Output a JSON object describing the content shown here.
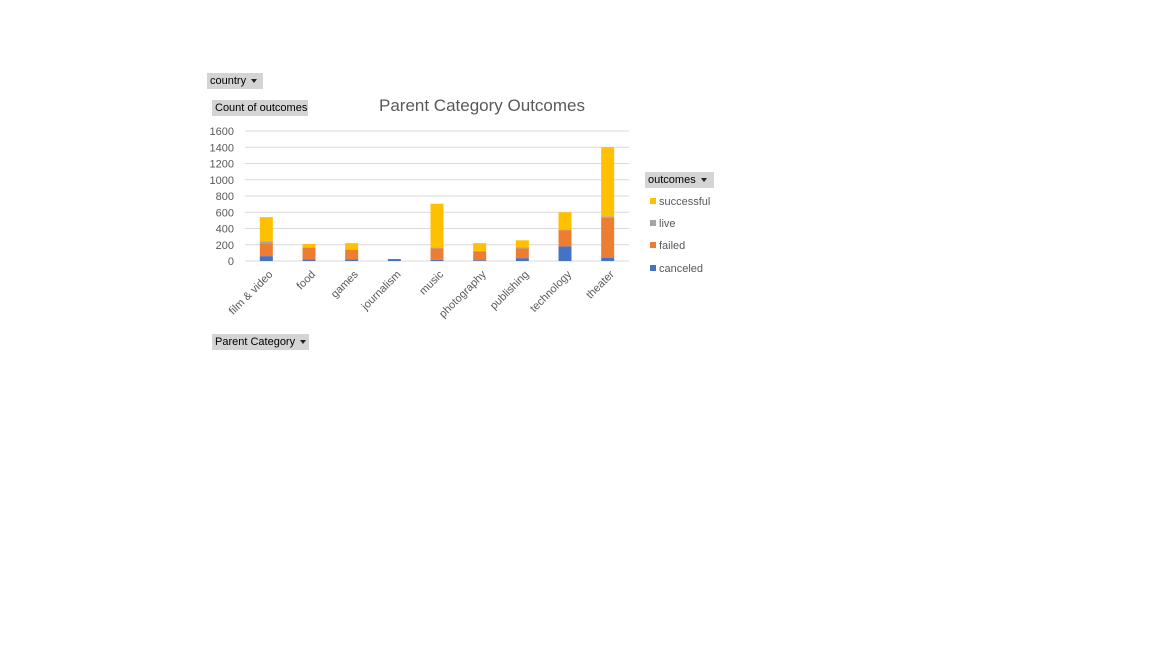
{
  "filters": {
    "country_label": "country",
    "value_label": "Count of outcomes",
    "legend_field_label": "outcomes",
    "axis_field_label": "Parent Category"
  },
  "colors": {
    "successful": "#ffc000",
    "live": "#a5a5a5",
    "failed": "#ed7d31",
    "canceled": "#4472c4",
    "gridline": "#d9d9d9",
    "text": "#595959"
  },
  "chart_data": {
    "type": "bar",
    "stacked": true,
    "title": "Parent Category Outcomes",
    "categories": [
      "film & video",
      "food",
      "games",
      "journalism",
      "music",
      "photography",
      "publishing",
      "technology",
      "theater"
    ],
    "series": [
      {
        "name": "canceled",
        "values": [
          60,
          20,
          20,
          24,
          15,
          10,
          35,
          180,
          37
        ]
      },
      {
        "name": "failed",
        "values": [
          160,
          140,
          120,
          0,
          140,
          110,
          120,
          200,
          493
        ]
      },
      {
        "name": "live",
        "values": [
          20,
          10,
          5,
          0,
          10,
          5,
          15,
          10,
          20
        ]
      },
      {
        "name": "successful",
        "values": [
          300,
          40,
          75,
          0,
          540,
          95,
          85,
          210,
          850
        ]
      }
    ],
    "ylim": [
      0,
      1600
    ],
    "yticks": [
      0,
      200,
      400,
      600,
      800,
      1000,
      1200,
      1400,
      1600
    ],
    "grid": true,
    "legend_position": "right",
    "legend_order": [
      "successful",
      "live",
      "failed",
      "canceled"
    ]
  }
}
